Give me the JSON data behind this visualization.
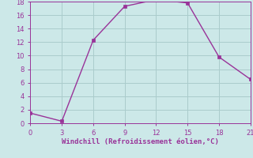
{
  "x": [
    0,
    3,
    6,
    9,
    12,
    15,
    18,
    21
  ],
  "y": [
    1.5,
    0.3,
    12.3,
    17.3,
    18.3,
    17.8,
    9.8,
    6.5
  ],
  "line_color": "#993399",
  "marker_color": "#993399",
  "bg_color": "#cce8e8",
  "grid_color": "#aacccc",
  "xlabel": "Windchill (Refroidissement éolien,°C)",
  "xlabel_color": "#993399",
  "tick_color": "#993399",
  "spine_color": "#993399",
  "xlim": [
    0,
    21
  ],
  "ylim": [
    0,
    18
  ],
  "xticks": [
    0,
    3,
    6,
    9,
    12,
    15,
    18,
    21
  ],
  "yticks": [
    0,
    2,
    4,
    6,
    8,
    10,
    12,
    14,
    16,
    18
  ],
  "line_width": 1.0,
  "marker_size": 2.5
}
